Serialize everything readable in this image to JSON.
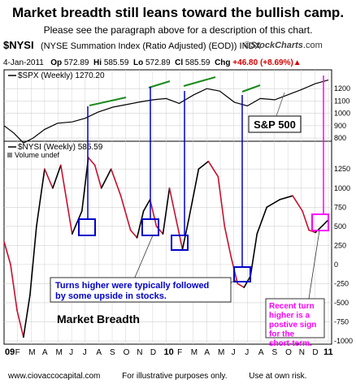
{
  "header": {
    "title": "Market breadth still leans toward the bullish camp.",
    "subtitle": "Please see the paragraph above for a description of this chart.",
    "symbol": "$NYSI",
    "symbol_desc": "(NYSE Summation Index (Ratio Adjusted) (EOD)) INDX",
    "logo_prefix": "©",
    "logo_name": "StockCharts",
    "logo_suffix": ".com",
    "date": "4-Jan-2011",
    "op_label": "Op",
    "op": "572.89",
    "hi_label": "Hi",
    "hi": "585.59",
    "lo_label": "Lo",
    "lo": "572.89",
    "cl_label": "Cl",
    "cl": "585.59",
    "chg_label": "Chg",
    "chg": "+46.80 (+8.69%)",
    "chg_arrow": "▲"
  },
  "footer": {
    "site": "www.ciovaccocapital.com",
    "disclaimer": "For illustrative purposes only.",
    "risk": "Use at own risk."
  },
  "colors": {
    "spx_line": "#000000",
    "nysi_line": "#000000",
    "nysi_down": "#c8102e",
    "trend": "#1a8a1a",
    "connector": "#0000cc",
    "highlight": "#ff00ff",
    "grid": "#d0d0d0"
  },
  "chart_data": [
    {
      "type": "line",
      "legend": "$SPX (Weekly) 1270.20",
      "label_box": "S&P 500",
      "ylim": [
        800,
        1300
      ],
      "yticks": [
        "800",
        "900",
        "1000",
        "1100",
        "1200"
      ],
      "x": [
        2009.0,
        2009.06,
        2009.12,
        2009.18,
        2009.25,
        2009.33,
        2009.42,
        2009.5,
        2009.58,
        2009.67,
        2009.75,
        2009.83,
        2009.92,
        2010.0,
        2010.08,
        2010.17,
        2010.25,
        2010.33,
        2010.42,
        2010.5,
        2010.58,
        2010.67,
        2010.75,
        2010.83,
        2010.92,
        2011.0
      ],
      "y": [
        900,
        840,
        760,
        800,
        870,
        920,
        930,
        960,
        1010,
        1050,
        1070,
        1090,
        1110,
        1120,
        1080,
        1150,
        1200,
        1180,
        1090,
        1060,
        1120,
        1110,
        1150,
        1190,
        1240,
        1270
      ]
    },
    {
      "type": "line",
      "legend": "$NYSI (Weekly) 585.59",
      "volume_label": "Volume undef",
      "ylim": [
        -1000,
        1550
      ],
      "yticks": [
        "-1000",
        "-750",
        "-500",
        "-250",
        "0",
        "250",
        "500",
        "750",
        "1000",
        "1250"
      ],
      "x": [
        2009.0,
        2009.04,
        2009.08,
        2009.12,
        2009.16,
        2009.2,
        2009.25,
        2009.3,
        2009.35,
        2009.42,
        2009.48,
        2009.52,
        2009.56,
        2009.6,
        2009.66,
        2009.72,
        2009.78,
        2009.82,
        2009.86,
        2009.9,
        2009.94,
        2009.98,
        2010.02,
        2010.06,
        2010.1,
        2010.14,
        2010.2,
        2010.26,
        2010.32,
        2010.36,
        2010.4,
        2010.44,
        2010.48,
        2010.52,
        2010.56,
        2010.62,
        2010.7,
        2010.78,
        2010.84,
        2010.88,
        2010.92,
        2010.96,
        2011.0
      ],
      "y": [
        300,
        0,
        -600,
        -950,
        -400,
        500,
        1250,
        1000,
        1300,
        400,
        700,
        1400,
        1300,
        1000,
        1250,
        900,
        450,
        350,
        700,
        850,
        500,
        400,
        1000,
        600,
        200,
        600,
        1250,
        1350,
        1150,
        500,
        100,
        -250,
        -300,
        -150,
        400,
        750,
        850,
        900,
        700,
        450,
        420,
        500,
        585
      ]
    }
  ],
  "x_axis": {
    "ticks": [
      "09",
      "F",
      "M",
      "A",
      "M",
      "J",
      "J",
      "A",
      "S",
      "O",
      "N",
      "D",
      "10",
      "F",
      "M",
      "A",
      "M",
      "J",
      "J",
      "A",
      "S",
      "O",
      "N",
      "D",
      "11"
    ]
  },
  "annotations": {
    "market_breadth": "Market Breadth",
    "turns_higher": "Turns higher were typically followed by some upside in stocks.",
    "recent_turn": "Recent turn higher is a postive sign for the short-term."
  }
}
